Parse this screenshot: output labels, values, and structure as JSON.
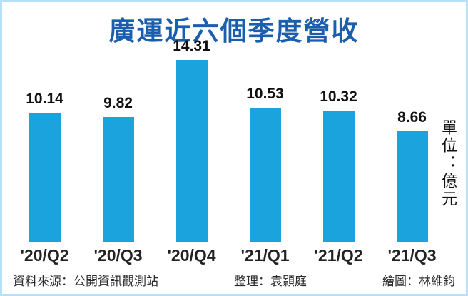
{
  "title": "廣運近六個季度營收",
  "unit_label": "單位：億元",
  "footer": {
    "source": "資料來源：公開資訊觀測站",
    "editor": "整理：袁顥庭",
    "illustrator": "繪圖：林維鈞"
  },
  "colors": {
    "bar": "#1aa3dd",
    "title": "#1b5ead",
    "border": "#b7e1f6",
    "text": "#111111"
  },
  "chart_data": {
    "type": "bar",
    "categories": [
      "'20/Q2",
      "'20/Q3",
      "'20/Q4",
      "'21/Q1",
      "'21/Q2",
      "'21/Q3"
    ],
    "values": [
      10.14,
      9.82,
      14.31,
      10.53,
      10.32,
      8.66
    ],
    "value_labels": [
      "10.14",
      "9.82",
      "14.31",
      "10.53",
      "10.32",
      "8.66"
    ],
    "title": "廣運近六個季度營收",
    "xlabel": "",
    "ylabel": "單位：億元",
    "ylim": [
      0,
      15
    ],
    "grid": false,
    "legend": "none",
    "bar_color": "#1aa3dd"
  }
}
